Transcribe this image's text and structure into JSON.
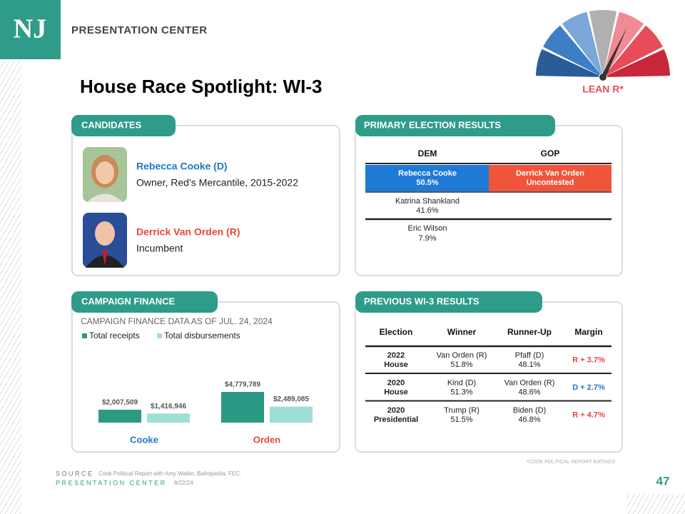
{
  "header": {
    "logo": "NJ",
    "brand": "PRESENTATION CENTER",
    "title": "House Race Spotlight: WI-3",
    "rating": "LEAN R*"
  },
  "candidates": {
    "heading": "CANDIDATES",
    "items": [
      {
        "name": "Rebecca Cooke (D)",
        "description": "Owner, Red’s Mercantile, 2015-2022",
        "color": "#1f77c8"
      },
      {
        "name": "Derrick Van Orden (R)",
        "description": "Incumbent",
        "color": "#e8463b"
      }
    ]
  },
  "primary": {
    "heading": "PRIMARY ELECTION RESULTS",
    "columns": [
      "DEM",
      "GOP"
    ],
    "dem": [
      {
        "name": "Rebecca Cooke",
        "result": "50.5%"
      },
      {
        "name": "Katrina Shankland",
        "result": "41.6%"
      },
      {
        "name": "Eric Wilson",
        "result": "7.9%"
      }
    ],
    "gop": [
      {
        "name": "Derrick Van Orden",
        "result": "Uncontested"
      }
    ]
  },
  "finance": {
    "heading": "CAMPAIGN FINANCE",
    "type": "bar",
    "subtitle": "CAMPAIGN FINANCE DATA AS OF JUL. 24, 2024",
    "categories": [
      "Cooke",
      "Orden"
    ],
    "category_colors": [
      "#1f77c8",
      "#e8463b"
    ],
    "series": [
      {
        "name": "Total receipts",
        "color": "#2a9a84",
        "values": [
          2007509,
          4779789
        ],
        "value_labels": [
          "$2,007,509",
          "$4,779,789"
        ]
      },
      {
        "name": "Total disbursements",
        "color": "#9edfd5",
        "values": [
          1416946,
          2489085
        ],
        "value_labels": [
          "$1,416,946",
          "$2,489,085"
        ]
      }
    ]
  },
  "previous": {
    "heading": "PREVIOUS WI-3 RESULTS",
    "columns": [
      "Election",
      "Winner",
      "Runner-Up",
      "Margin"
    ],
    "rows": [
      {
        "election": [
          "2022",
          "House"
        ],
        "winner": [
          "Van Orden (R)",
          "51.8%"
        ],
        "runner_up": [
          "Pfaff (D)",
          "48.1%"
        ],
        "margin": "R + 3.7%",
        "margin_color": "#e8463b"
      },
      {
        "election": [
          "2020",
          "House"
        ],
        "winner": [
          "Kind (D)",
          "51.3%"
        ],
        "runner_up": [
          "Van Orden (R)",
          "48.6%"
        ],
        "margin": "D + 2.7%",
        "margin_color": "#1f77c8"
      },
      {
        "election": [
          "2020",
          "Presidential"
        ],
        "winner": [
          "Trump (R)",
          "51.5%"
        ],
        "runner_up": [
          "Biden (D)",
          "46.8%"
        ],
        "margin": "R + 4.7%",
        "margin_color": "#e8463b"
      }
    ]
  },
  "footer": {
    "source_label": "SOURCE",
    "source": "Cook Political Report with Amy Walter, Ballotpedia, FEC.",
    "brand": "PRESENTATION CENTER",
    "date": "8/22/24",
    "note": "*COOK POLITICAL REPORT RATINGS",
    "page": "47"
  }
}
